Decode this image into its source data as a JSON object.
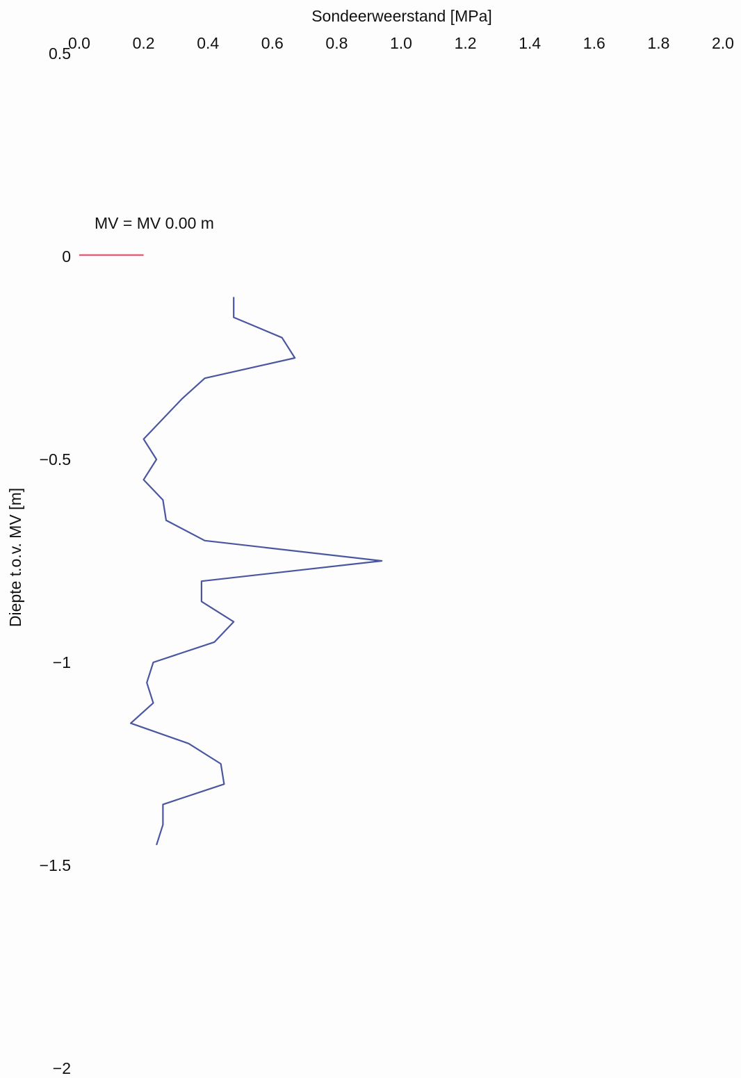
{
  "chart_data": {
    "type": "line",
    "title": "",
    "xlabel": "Sondeerweerstand [MPa]",
    "ylabel": "Diepte t.o.v. MV [m]",
    "x_axis_position": "top",
    "xlim": [
      0.0,
      2.0
    ],
    "ylim": [
      -2.0,
      0.5
    ],
    "x_ticks": [
      "0.0",
      "0.2",
      "0.4",
      "0.6",
      "0.8",
      "1.0",
      "1.2",
      "1.4",
      "1.6",
      "1.8",
      "2.0"
    ],
    "x_tick_values": [
      0.0,
      0.2,
      0.4,
      0.6,
      0.8,
      1.0,
      1.2,
      1.4,
      1.6,
      1.8,
      2.0
    ],
    "y_ticks": [
      "0.5",
      "0",
      "−0.5",
      "−1",
      "−1.5",
      "−2"
    ],
    "y_tick_values": [
      0.5,
      0.0,
      -0.5,
      -1.0,
      -1.5,
      -2.0
    ],
    "grid": false,
    "reference_line": {
      "label": "MV = MV 0.00 m",
      "depth": 0.0,
      "x_range": [
        0.0,
        0.2
      ],
      "color": "#e0607a"
    },
    "series": [
      {
        "color": "#4a56a0",
        "x": [
          0.48,
          0.48,
          0.63,
          0.67,
          0.39,
          0.32,
          0.2,
          0.24,
          0.2,
          0.26,
          0.27,
          0.39,
          0.94,
          0.38,
          0.38,
          0.48,
          0.42,
          0.23,
          0.21,
          0.23,
          0.16,
          0.34,
          0.44,
          0.45,
          0.26,
          0.26,
          0.24
        ],
        "y": [
          -0.1,
          -0.15,
          -0.2,
          -0.25,
          -0.3,
          -0.35,
          -0.45,
          -0.5,
          -0.55,
          -0.6,
          -0.65,
          -0.7,
          -0.75,
          -0.8,
          -0.85,
          -0.9,
          -0.95,
          -1.0,
          -1.05,
          -1.1,
          -1.15,
          -1.2,
          -1.25,
          -1.3,
          -1.35,
          -1.4,
          -1.45
        ]
      }
    ]
  }
}
